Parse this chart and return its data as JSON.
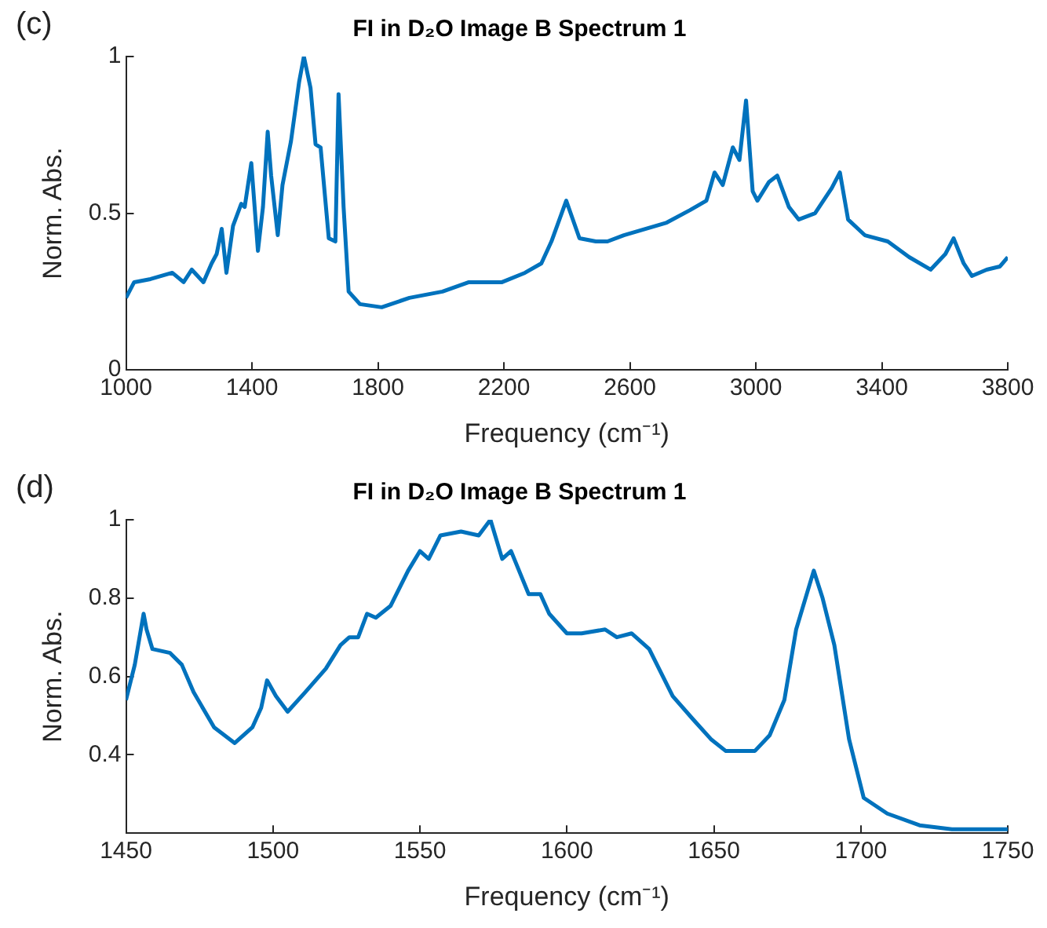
{
  "chart_data": [
    {
      "type": "line",
      "title": "FI in D₂O Image B Spectrum 1",
      "xlabel": "Frequency (cm⁻¹)",
      "ylabel": "Norm. Abs.",
      "annotations": [
        "(c)"
      ],
      "marker": "none",
      "line_style": "solid",
      "legend": false,
      "x": [
        1000,
        1026,
        1078,
        1147,
        1183,
        1209,
        1246,
        1272,
        1288,
        1304,
        1319,
        1340,
        1366,
        1377,
        1398,
        1419,
        1435,
        1450,
        1461,
        1482,
        1497,
        1524,
        1550,
        1565,
        1586,
        1602,
        1618,
        1644,
        1665,
        1675,
        1691,
        1707,
        1743,
        1812,
        1900,
        2005,
        2089,
        2194,
        2267,
        2319,
        2351,
        2398,
        2440,
        2492,
        2529,
        2581,
        2649,
        2717,
        2791,
        2843,
        2869,
        2895,
        2927,
        2948,
        2969,
        2990,
        3005,
        3042,
        3068,
        3105,
        3136,
        3188,
        3241,
        3267,
        3293,
        3346,
        3419,
        3487,
        3555,
        3602,
        3628,
        3660,
        3686,
        3733,
        3775,
        3800
      ],
      "series": [
        {
          "color": "#0072bd",
          "values": [
            0.23,
            0.28,
            0.29,
            0.31,
            0.28,
            0.32,
            0.28,
            0.34,
            0.37,
            0.45,
            0.31,
            0.46,
            0.53,
            0.52,
            0.66,
            0.38,
            0.52,
            0.76,
            0.62,
            0.43,
            0.59,
            0.73,
            0.92,
            1.0,
            0.9,
            0.72,
            0.71,
            0.42,
            0.41,
            0.88,
            0.52,
            0.25,
            0.21,
            0.2,
            0.23,
            0.25,
            0.28,
            0.28,
            0.31,
            0.34,
            0.41,
            0.54,
            0.42,
            0.41,
            0.41,
            0.43,
            0.45,
            0.47,
            0.51,
            0.54,
            0.63,
            0.59,
            0.71,
            0.67,
            0.86,
            0.57,
            0.54,
            0.6,
            0.62,
            0.52,
            0.48,
            0.5,
            0.58,
            0.63,
            0.48,
            0.43,
            0.41,
            0.36,
            0.32,
            0.37,
            0.42,
            0.34,
            0.3,
            0.32,
            0.33,
            0.36
          ]
        }
      ],
      "xlim": [
        1000,
        3800
      ],
      "xticks": [
        1000,
        1400,
        1800,
        2200,
        2600,
        3000,
        3400,
        3800
      ],
      "ylim": [
        0,
        1
      ],
      "yticks": [
        0,
        0.5,
        1
      ]
    },
    {
      "type": "line",
      "title": "FI in D₂O Image B Spectrum 1",
      "xlabel": "Frequency (cm⁻¹)",
      "ylabel": "Norm. Abs.",
      "annotations": [
        "(d)"
      ],
      "marker": "none",
      "line_style": "solid",
      "legend": false,
      "x": [
        1450,
        1453,
        1456,
        1457,
        1459,
        1465,
        1469,
        1473,
        1480,
        1487,
        1493,
        1496,
        1498,
        1501,
        1505,
        1511,
        1518,
        1523,
        1526,
        1529,
        1532,
        1535,
        1540,
        1546,
        1550,
        1553,
        1557,
        1564,
        1570,
        1574,
        1578,
        1581,
        1587,
        1591,
        1594,
        1600,
        1605,
        1613,
        1617,
        1622,
        1628,
        1636,
        1643,
        1649,
        1654,
        1664,
        1669,
        1674,
        1678,
        1684,
        1687,
        1691,
        1696,
        1701,
        1709,
        1720,
        1731,
        1750
      ],
      "series": [
        {
          "color": "#0072bd",
          "values": [
            0.54,
            0.63,
            0.76,
            0.72,
            0.67,
            0.66,
            0.63,
            0.56,
            0.47,
            0.43,
            0.47,
            0.52,
            0.59,
            0.55,
            0.51,
            0.56,
            0.62,
            0.68,
            0.7,
            0.7,
            0.76,
            0.75,
            0.78,
            0.87,
            0.92,
            0.9,
            0.96,
            0.97,
            0.96,
            1.0,
            0.9,
            0.92,
            0.81,
            0.81,
            0.76,
            0.71,
            0.71,
            0.72,
            0.7,
            0.71,
            0.67,
            0.55,
            0.49,
            0.44,
            0.41,
            0.41,
            0.45,
            0.54,
            0.72,
            0.87,
            0.8,
            0.68,
            0.44,
            0.29,
            0.25,
            0.22,
            0.21,
            0.21
          ]
        }
      ],
      "xlim": [
        1450,
        1750
      ],
      "xticks": [
        1450,
        1500,
        1550,
        1600,
        1650,
        1700,
        1750
      ],
      "ylim": [
        0.2,
        1
      ],
      "yticks": [
        0.4,
        0.6,
        0.8,
        1
      ]
    }
  ]
}
